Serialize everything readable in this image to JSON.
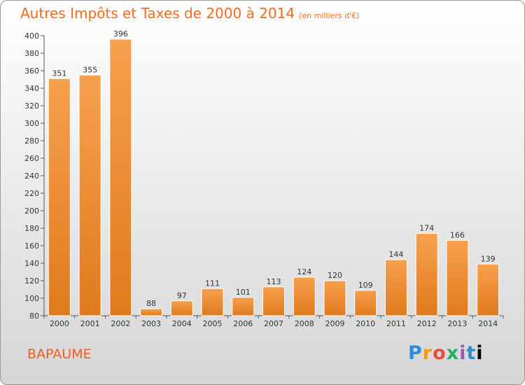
{
  "title": "Autres Impôts et Taxes de 2000 à 2014",
  "unit": "(en milliers d'€)",
  "place": "BAPAUME",
  "logo": "Proxiti",
  "colors": {
    "title": "#ff6a1a",
    "bar_light": "#f7a04e",
    "bar_dark": "#e07a1e",
    "place": "#ff5a1a"
  },
  "chart_data": {
    "type": "bar",
    "categories": [
      "2000",
      "2001",
      "2002",
      "2003",
      "2004",
      "2005",
      "2006",
      "2007",
      "2008",
      "2009",
      "2010",
      "2011",
      "2012",
      "2013",
      "2014"
    ],
    "values": [
      351,
      355,
      396,
      88,
      97,
      111,
      101,
      113,
      124,
      120,
      109,
      144,
      174,
      166,
      139
    ],
    "ylim": [
      80,
      400
    ],
    "yticks": [
      80,
      100,
      120,
      140,
      160,
      180,
      200,
      220,
      240,
      260,
      280,
      300,
      320,
      340,
      360,
      380,
      400
    ],
    "grid": false,
    "title": "Autres Impôts et Taxes de 2000 à 2014",
    "xlabel": "",
    "ylabel": ""
  }
}
